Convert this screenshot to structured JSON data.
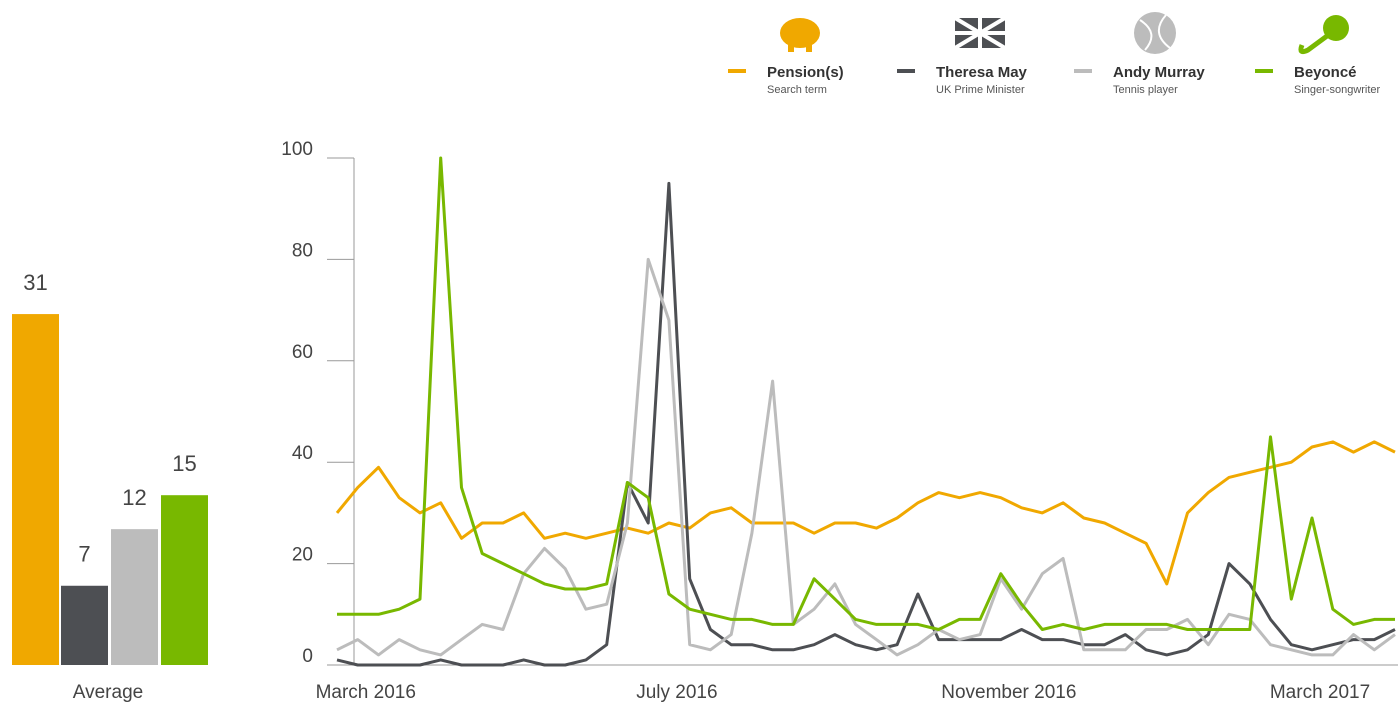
{
  "chart_data": [
    {
      "type": "bar",
      "xlabel": "Average",
      "values": [
        31,
        7,
        12,
        15
      ],
      "colors": [
        "#f0a800",
        "#4d4f53",
        "#bcbcbc",
        "#78b800"
      ]
    },
    {
      "type": "line",
      "categories": [
        null,
        "March 2016",
        null,
        null,
        null,
        null,
        null,
        null,
        null,
        null,
        null,
        null,
        null,
        null,
        null,
        null,
        "July 2016",
        null,
        null,
        null,
        null,
        null,
        null,
        null,
        null,
        null,
        null,
        null,
        null,
        null,
        null,
        null,
        "November 2016",
        null,
        null,
        null,
        null,
        null,
        null,
        null,
        null,
        null,
        null,
        null,
        null,
        null,
        null,
        "March 2017",
        null,
        null,
        null,
        null
      ],
      "ylim": [
        0,
        100
      ],
      "yticks": [
        0,
        20,
        40,
        60,
        80,
        100
      ],
      "grid": false,
      "legend": "top-right",
      "series": [
        {
          "name": "Pension(s)",
          "description": "Search term",
          "color": "#f0a800",
          "values": [
            30,
            35,
            39,
            33,
            30,
            32,
            25,
            28,
            28,
            30,
            25,
            26,
            25,
            26,
            27,
            26,
            28,
            27,
            30,
            31,
            28,
            28,
            28,
            26,
            28,
            28,
            27,
            29,
            32,
            34,
            33,
            34,
            33,
            31,
            30,
            32,
            29,
            28,
            26,
            24,
            16,
            30,
            34,
            37,
            38,
            39,
            40,
            43,
            44,
            42,
            44,
            42
          ]
        },
        {
          "name": "Theresa May",
          "description": "UK Prime Minister",
          "color": "#4d4f53",
          "values": [
            1,
            0,
            0,
            0,
            0,
            1,
            0,
            0,
            0,
            1,
            0,
            0,
            1,
            4,
            36,
            28,
            95,
            17,
            7,
            4,
            4,
            3,
            3,
            4,
            6,
            4,
            3,
            4,
            14,
            5,
            5,
            5,
            5,
            7,
            5,
            5,
            4,
            4,
            6,
            3,
            2,
            3,
            6,
            20,
            16,
            9,
            4,
            3,
            4,
            5,
            5,
            7
          ]
        },
        {
          "name": "Andy Murray",
          "description": "Tennis player",
          "color": "#bcbcbc",
          "values": [
            3,
            5,
            2,
            5,
            3,
            2,
            5,
            8,
            7,
            18,
            23,
            19,
            11,
            12,
            28,
            80,
            68,
            4,
            3,
            6,
            26,
            56,
            8,
            11,
            16,
            8,
            5,
            2,
            4,
            7,
            5,
            6,
            17,
            11,
            18,
            21,
            3,
            3,
            3,
            7,
            7,
            9,
            4,
            10,
            9,
            4,
            3,
            2,
            2,
            6,
            3,
            6
          ]
        },
        {
          "name": "Beyoncé",
          "description": "Singer-songwriter",
          "color": "#78b800",
          "values": [
            10,
            10,
            10,
            11,
            13,
            100,
            35,
            22,
            20,
            18,
            16,
            15,
            15,
            16,
            36,
            33,
            14,
            11,
            10,
            9,
            9,
            8,
            8,
            17,
            13,
            9,
            8,
            8,
            8,
            7,
            9,
            9,
            18,
            12,
            7,
            8,
            7,
            8,
            8,
            8,
            8,
            7,
            7,
            7,
            7,
            45,
            13,
            29,
            11,
            8,
            9,
            9
          ]
        }
      ]
    }
  ]
}
